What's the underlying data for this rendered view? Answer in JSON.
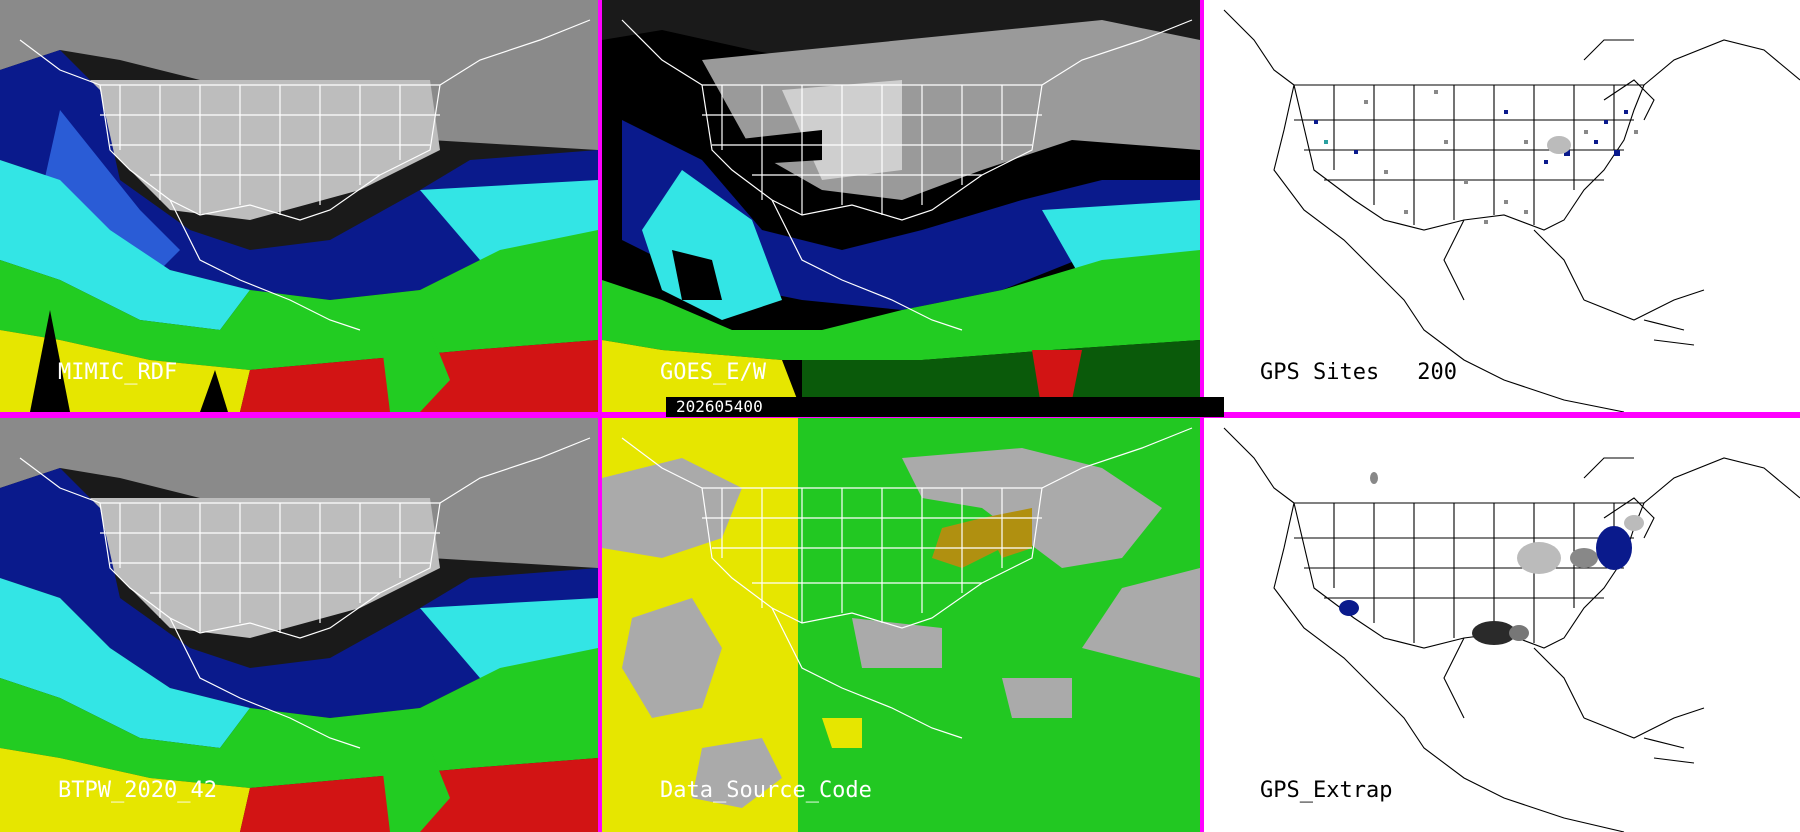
{
  "timestamp": "202605400",
  "panels": {
    "mimic": {
      "label": "MIMIC_RDF"
    },
    "goes": {
      "label": "GOES_E/W"
    },
    "gps_sites": {
      "label": "GPS Sites",
      "count": "200"
    },
    "btpw": {
      "label": "BTPW_2020_42"
    },
    "data_source": {
      "label": "Data_Source_Code"
    },
    "gps_extrap": {
      "label": "GPS_Extrap"
    }
  },
  "colors": {
    "divider": "#ff00ff",
    "dry": "#0a1a8c",
    "mid_dry": "#2a5cd6",
    "moist": "#33e5e5",
    "wet": "#22cc22",
    "very_wet": "#e6e600",
    "extreme": "#d21414",
    "source_gps": "#c8a000",
    "source_goes": "#e6e600",
    "source_model": "#22c822",
    "source_other": "#aaaaaa"
  }
}
